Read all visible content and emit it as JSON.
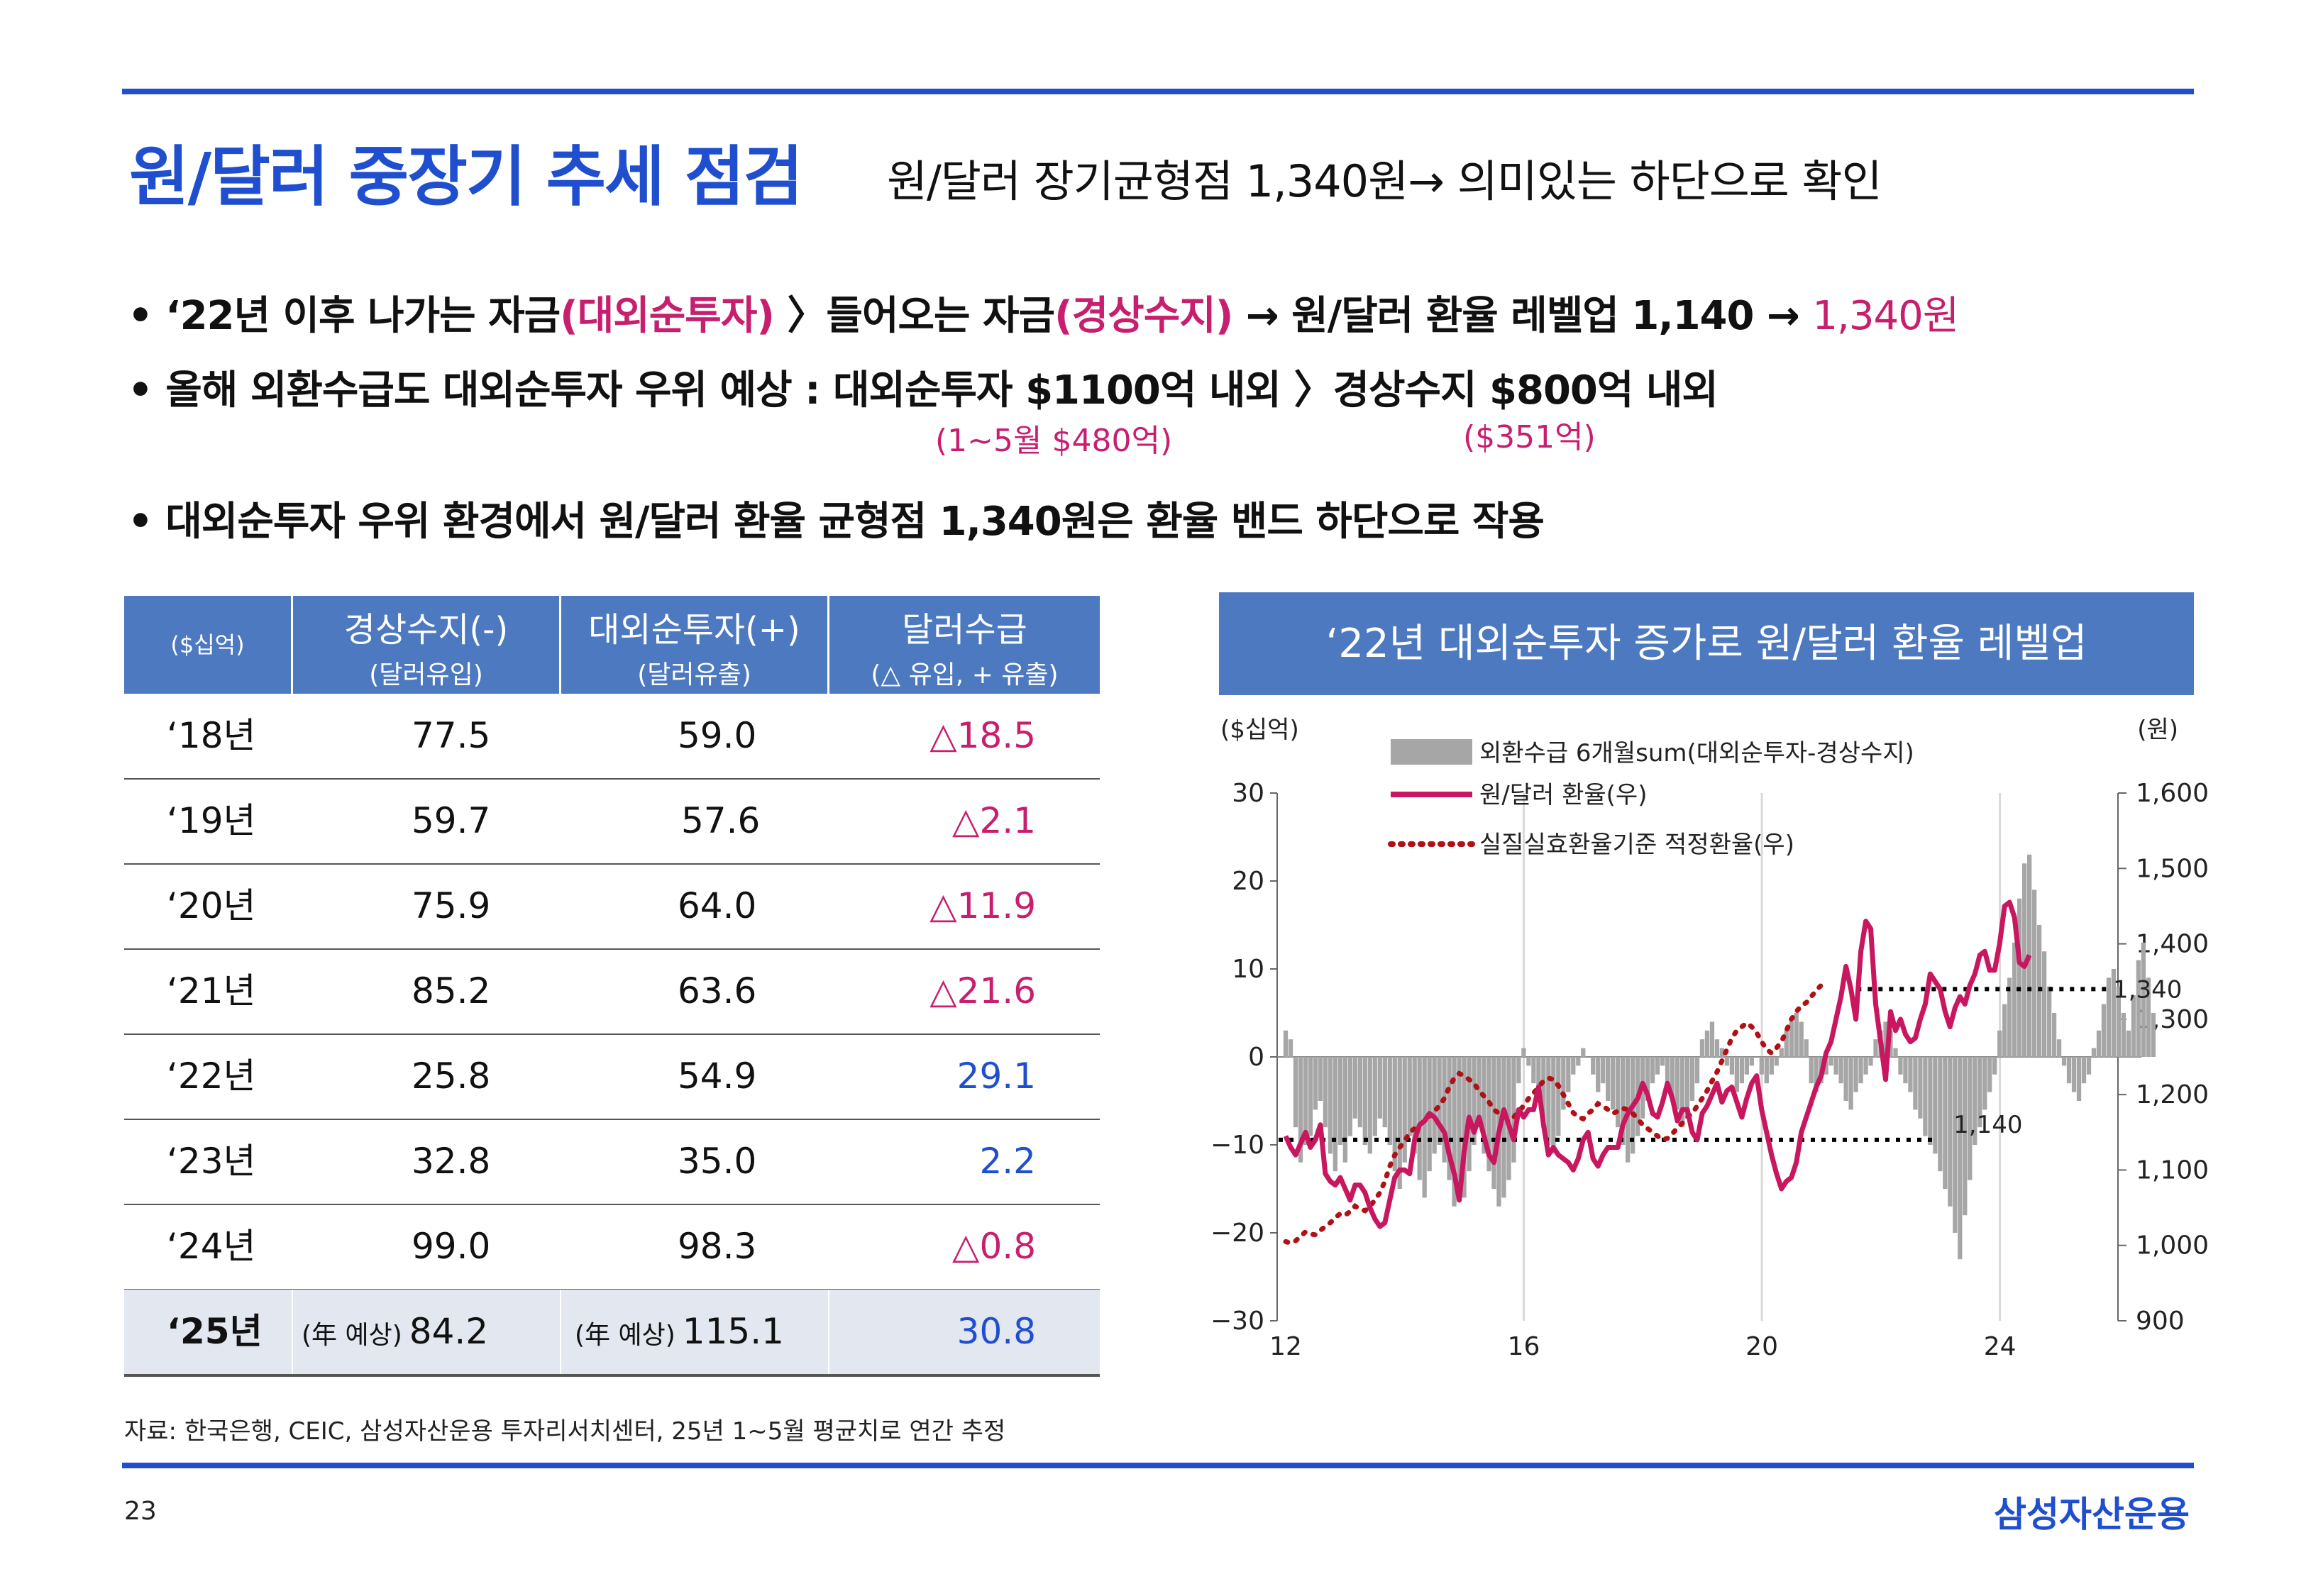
{
  "header": {
    "title": "원/달러 중장기 추세 점검",
    "subtitle": "원/달러 장기균형점 1,340원→  의미있는 하단으로 확인"
  },
  "bullets": {
    "b1_pre": "• ‘22년 이후 나가는 자금",
    "b1_pink1": "(대외순투자)",
    "b1_mid": " 〉들어오는 자금",
    "b1_pink2": "(경상수지)",
    "b1_post": "  → 원/달러 환율 레벨업 1,140  → ",
    "b1_pink3": "1,340원",
    "b2": "• 올해 외환수급도 대외순투자 우위 예상 : 대외순투자 $1100억 내외 〉경상수지 $800억 내외",
    "b2_note1": "(1~5월 $480억)",
    "b2_note2": "($351억)",
    "b3": "• 대외순투자 우위 환경에서 원/달러 환율 균형점 1,340원은 환율 밴드 하단으로 작용"
  },
  "table": {
    "unit": "($십억)",
    "col1_h1": "경상수지(-)",
    "col1_h2": "(달러유입)",
    "col2_h1": "대외순투자(+)",
    "col2_h2": "(달러유출)",
    "col3_h1": "달러수급",
    "col3_h2": "(△ 유입,  + 유출)",
    "rows": [
      {
        "year": "‘18년",
        "a": "77.5",
        "b": "59.0",
        "c": "△18.5"
      },
      {
        "year": "‘19년",
        "a": "59.7",
        "b": "57.6",
        "c": "△2.1"
      },
      {
        "year": "‘20년",
        "a": "75.9",
        "b": "64.0",
        "c": "△11.9"
      },
      {
        "year": "‘21년",
        "a": "85.2",
        "b": "63.6",
        "c": "△21.6"
      },
      {
        "year": "‘22년",
        "a": "25.8",
        "b": "54.9",
        "c": "29.1"
      },
      {
        "year": "‘23년",
        "a": "32.8",
        "b": "35.0",
        "c": "2.2"
      },
      {
        "year": "‘24년",
        "a": "99.0",
        "b": "98.3",
        "c": "△0.8"
      },
      {
        "year": "‘25년",
        "a_pre": "(年 예상)",
        "a": "84.2",
        "b_pre": "(年 예상)",
        "b": "115.1",
        "c": "30.8"
      }
    ]
  },
  "chart_title": "‘22년 대외순투자 증가로 원/달러 환율 레벨업",
  "chart_data": {
    "type": "bar",
    "ylabel_left": "($십억)",
    "ylabel_right": "(원)",
    "ylim_left": [
      -30,
      30
    ],
    "ylim_right": [
      900,
      1600
    ],
    "yticks_left": [
      "30",
      "20",
      "10",
      "0",
      "−10",
      "−20",
      "−30"
    ],
    "yticks_right": [
      "1,600",
      "1,500",
      "1,400",
      "1,300",
      "1,200",
      "1,100",
      "1,000",
      "900"
    ],
    "xticks": [
      "12",
      "16",
      "20",
      "24"
    ],
    "xlim": [
      2012,
      2025.9
    ],
    "legend": [
      "외환수급 6개월sum(대외순투자-경상수지)",
      "원/달러 환율(우)",
      "실질실효환율기준 적정환율(우)"
    ],
    "annotations": {
      "upper": "1,340",
      "lower": "1,140"
    },
    "colors": {
      "bars": "#a6a6a6",
      "fx": "#c8175f",
      "fair": "#b01116",
      "level": "#000000"
    },
    "series": [
      {
        "name": "외환수급 6개월sum(대외순투자-경상수지)",
        "kind": "bar",
        "x_start": 2012.0,
        "step": 0.0833,
        "values": [
          3,
          2,
          -8,
          -12,
          -10,
          -9,
          -6,
          -5,
          -8,
          -11,
          -13,
          -10,
          -12,
          -9,
          -7,
          -8,
          -10,
          -11,
          -9,
          -7,
          -8,
          -10,
          -13,
          -15,
          -12,
          -9,
          -11,
          -14,
          -16,
          -13,
          -11,
          -10,
          -12,
          -14,
          -17,
          -15,
          -16,
          -13,
          -10,
          -8,
          -11,
          -13,
          -15,
          -17,
          -16,
          -14,
          -12,
          -3,
          1,
          -1,
          -3,
          -5,
          -8,
          -10,
          -11,
          -9,
          -6,
          -4,
          -2,
          -1,
          1,
          0,
          -2,
          -4,
          -3,
          -5,
          -6,
          -8,
          -10,
          -12,
          -11,
          -9,
          -7,
          -5,
          -3,
          -2,
          -1,
          -3,
          -5,
          -6,
          -8,
          -7,
          -5,
          -3,
          2,
          3,
          4,
          2,
          1,
          -1,
          -2,
          -4,
          -3,
          -2,
          -1,
          0,
          -2,
          -3,
          -2,
          -1,
          1,
          3,
          4,
          5,
          4,
          2,
          -3,
          -4,
          -3,
          -2,
          -1,
          -2,
          -3,
          -5,
          -6,
          -4,
          -3,
          -2,
          -1,
          2,
          3,
          4,
          3,
          1,
          -2,
          -3,
          -4,
          -6,
          -7,
          -9,
          -10,
          -11,
          -13,
          -15,
          -17,
          -20,
          -23,
          -18,
          -14,
          -10,
          -8,
          -6,
          -4,
          -2,
          3,
          6,
          9,
          13,
          18,
          22,
          23,
          19,
          15,
          12,
          8,
          5,
          2,
          -1,
          -3,
          -4,
          -5,
          -3,
          -2,
          1,
          3,
          6,
          9,
          10,
          8,
          5,
          3,
          7,
          11,
          13,
          9,
          5
        ]
      },
      {
        "name": "원/달러 환율(우)",
        "kind": "line",
        "x_start": 2012.0,
        "step": 0.0833,
        "values": [
          1145,
          1130,
          1120,
          1135,
          1150,
          1130,
          1140,
          1160,
          1095,
          1085,
          1080,
          1090,
          1075,
          1060,
          1080,
          1080,
          1070,
          1050,
          1035,
          1025,
          1030,
          1060,
          1090,
          1100,
          1100,
          1095,
          1140,
          1160,
          1165,
          1175,
          1170,
          1160,
          1150,
          1120,
          1095,
          1060,
          1125,
          1170,
          1150,
          1170,
          1145,
          1120,
          1110,
          1150,
          1180,
          1160,
          1140,
          1180,
          1170,
          1180,
          1180,
          1210,
          1160,
          1120,
          1130,
          1120,
          1115,
          1110,
          1100,
          1115,
          1140,
          1150,
          1115,
          1105,
          1120,
          1130,
          1130,
          1130,
          1160,
          1175,
          1185,
          1195,
          1215,
          1200,
          1175,
          1170,
          1190,
          1215,
          1195,
          1165,
          1180,
          1180,
          1150,
          1140,
          1175,
          1185,
          1200,
          1215,
          1190,
          1205,
          1210,
          1190,
          1170,
          1195,
          1215,
          1225,
          1180,
          1150,
          1120,
          1095,
          1075,
          1085,
          1090,
          1110,
          1150,
          1170,
          1190,
          1210,
          1225,
          1255,
          1270,
          1300,
          1330,
          1370,
          1340,
          1300,
          1390,
          1430,
          1420,
          1320,
          1270,
          1220,
          1310,
          1285,
          1300,
          1280,
          1270,
          1275,
          1300,
          1320,
          1360,
          1350,
          1340,
          1310,
          1290,
          1315,
          1330,
          1320,
          1345,
          1360,
          1385,
          1390,
          1365,
          1365,
          1400,
          1450,
          1455,
          1435,
          1375,
          1370,
          1385
        ]
      },
      {
        "name": "실질실효환율기준 적정환율(우)",
        "kind": "line-dotted",
        "x_start": 2012.0,
        "step": 0.0833,
        "values": [
          1005,
          1003,
          1006,
          1012,
          1018,
          1015,
          1014,
          1020,
          1025,
          1030,
          1037,
          1042,
          1040,
          1045,
          1052,
          1048,
          1046,
          1052,
          1060,
          1070,
          1085,
          1105,
          1120,
          1130,
          1138,
          1150,
          1155,
          1160,
          1165,
          1172,
          1178,
          1185,
          1195,
          1210,
          1222,
          1228,
          1225,
          1220,
          1215,
          1205,
          1198,
          1190,
          1180,
          1175,
          1172,
          1168,
          1170,
          1178,
          1185,
          1195,
          1202,
          1210,
          1218,
          1222,
          1220,
          1212,
          1200,
          1188,
          1176,
          1170,
          1168,
          1175,
          1180,
          1188,
          1185,
          1180,
          1175,
          1178,
          1182,
          1180,
          1175,
          1168,
          1160,
          1155,
          1150,
          1145,
          1140,
          1142,
          1148,
          1156,
          1162,
          1170,
          1175,
          1185,
          1195,
          1205,
          1218,
          1230,
          1245,
          1260,
          1275,
          1285,
          1290,
          1295,
          1290,
          1282,
          1270,
          1260,
          1255,
          1262,
          1270,
          1285,
          1300,
          1310,
          1318,
          1322,
          1330,
          1338,
          1345
        ]
      }
    ]
  },
  "source": "자료: 한국은행, CEIC, 삼성자산운용 투자리서치센터, 25년 1~5월 평균치로 연간 추정",
  "page_number": "23",
  "logo": "삼성자산운용"
}
